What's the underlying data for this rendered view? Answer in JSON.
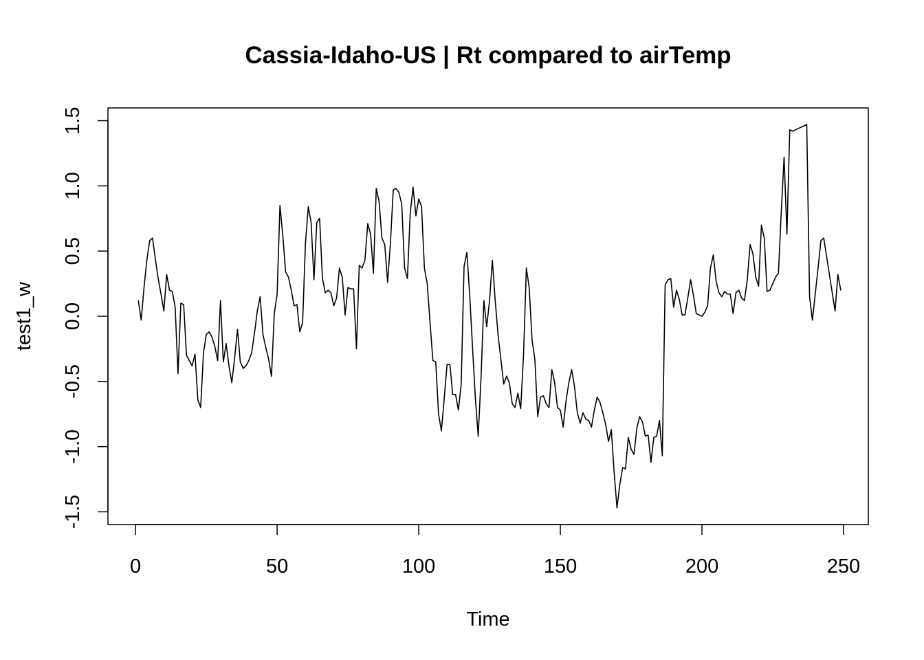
{
  "chart_data": {
    "type": "line",
    "title": "Cassia-Idaho-US | Rt compared to airTemp",
    "xlabel": "Time",
    "ylabel": "test1_w",
    "xlim": [
      1,
      248
    ],
    "ylim": [
      -1.47,
      1.47
    ],
    "x_ticks": [
      0,
      50,
      100,
      150,
      200,
      250
    ],
    "x_tick_labels": [
      "0",
      "50",
      "100",
      "150",
      "200",
      "250"
    ],
    "y_ticks": [
      -1.5,
      -1.0,
      -0.5,
      0.0,
      0.5,
      1.0,
      1.5
    ],
    "y_tick_labels": [
      "-1.5",
      "-1.0",
      "-0.5",
      "0.0",
      "0.5",
      "1.0",
      "1.5"
    ],
    "grid": false,
    "line_color": "#000000",
    "series": [
      {
        "x_start": 1,
        "x_step": 1,
        "values": [
          0.12,
          -0.03,
          0.22,
          0.43,
          0.58,
          0.6,
          0.44,
          0.29,
          0.17,
          0.04,
          0.32,
          0.2,
          0.19,
          0.07,
          -0.44,
          0.1,
          0.09,
          -0.3,
          -0.34,
          -0.38,
          -0.29,
          -0.64,
          -0.7,
          -0.28,
          -0.14,
          -0.12,
          -0.16,
          -0.23,
          -0.34,
          0.12,
          -0.35,
          -0.21,
          -0.38,
          -0.51,
          -0.32,
          -0.1,
          -0.35,
          -0.4,
          -0.38,
          -0.34,
          -0.28,
          -0.13,
          0.04,
          0.15,
          -0.14,
          -0.24,
          -0.33,
          -0.46,
          0.02,
          0.17,
          0.85,
          0.62,
          0.34,
          0.3,
          0.2,
          0.08,
          0.09,
          -0.12,
          -0.05,
          0.56,
          0.84,
          0.72,
          0.28,
          0.72,
          0.75,
          0.29,
          0.18,
          0.2,
          0.18,
          0.08,
          0.14,
          0.37,
          0.3,
          0.01,
          0.22,
          0.21,
          0.21,
          -0.25,
          0.39,
          0.37,
          0.43,
          0.71,
          0.63,
          0.33,
          0.98,
          0.88,
          0.6,
          0.55,
          0.26,
          0.56,
          0.97,
          0.98,
          0.95,
          0.86,
          0.37,
          0.29,
          0.79,
          0.99,
          0.77,
          0.9,
          0.84,
          0.37,
          0.25,
          -0.05,
          -0.34,
          -0.35,
          -0.75,
          -0.88,
          -0.63,
          -0.37,
          -0.37,
          -0.6,
          -0.6,
          -0.72,
          -0.52,
          0.38,
          0.49,
          0.16,
          -0.24,
          -0.63,
          -0.92,
          -0.47,
          0.12,
          -0.08,
          0.12,
          0.43,
          0.12,
          -0.14,
          -0.33,
          -0.52,
          -0.46,
          -0.51,
          -0.67,
          -0.7,
          -0.59,
          -0.71,
          -0.3,
          0.37,
          0.22,
          -0.18,
          -0.33,
          -0.77,
          -0.62,
          -0.61,
          -0.67,
          -0.7,
          -0.41,
          -0.51,
          -0.7,
          -0.72,
          -0.85,
          -0.65,
          -0.51,
          -0.41,
          -0.54,
          -0.74,
          -0.82,
          -0.74,
          -0.79,
          -0.8,
          -0.85,
          -0.72,
          -0.62,
          -0.66,
          -0.74,
          -0.83,
          -0.96,
          -0.87,
          -1.2,
          -1.47,
          -1.29,
          -1.16,
          -1.17,
          -0.93,
          -1.02,
          -1.06,
          -0.86,
          -0.77,
          -0.81,
          -0.92,
          -0.91,
          -1.12,
          -0.93,
          -0.92,
          -0.8,
          -1.07,
          0.24,
          0.28,
          0.29,
          0.07,
          0.2,
          0.13,
          0.01,
          0.01,
          0.14,
          0.28,
          0.16,
          0.02,
          0.01,
          0.0,
          0.03,
          0.08,
          0.37,
          0.47,
          0.27,
          0.18,
          0.15,
          0.19,
          0.17,
          0.17,
          0.02,
          0.18,
          0.2,
          0.14,
          0.12,
          0.28,
          0.55,
          0.48,
          0.3,
          0.23,
          0.7,
          0.6,
          0.19,
          0.2,
          0.25,
          0.3,
          0.33,
          0.8,
          1.22,
          0.63,
          1.43,
          1.42,
          1.43,
          1.44,
          1.45,
          1.46,
          1.47,
          0.15,
          -0.03,
          0.17,
          0.37,
          0.58,
          0.6,
          0.46,
          0.32,
          0.18,
          0.04,
          0.32,
          0.2
        ]
      }
    ]
  }
}
